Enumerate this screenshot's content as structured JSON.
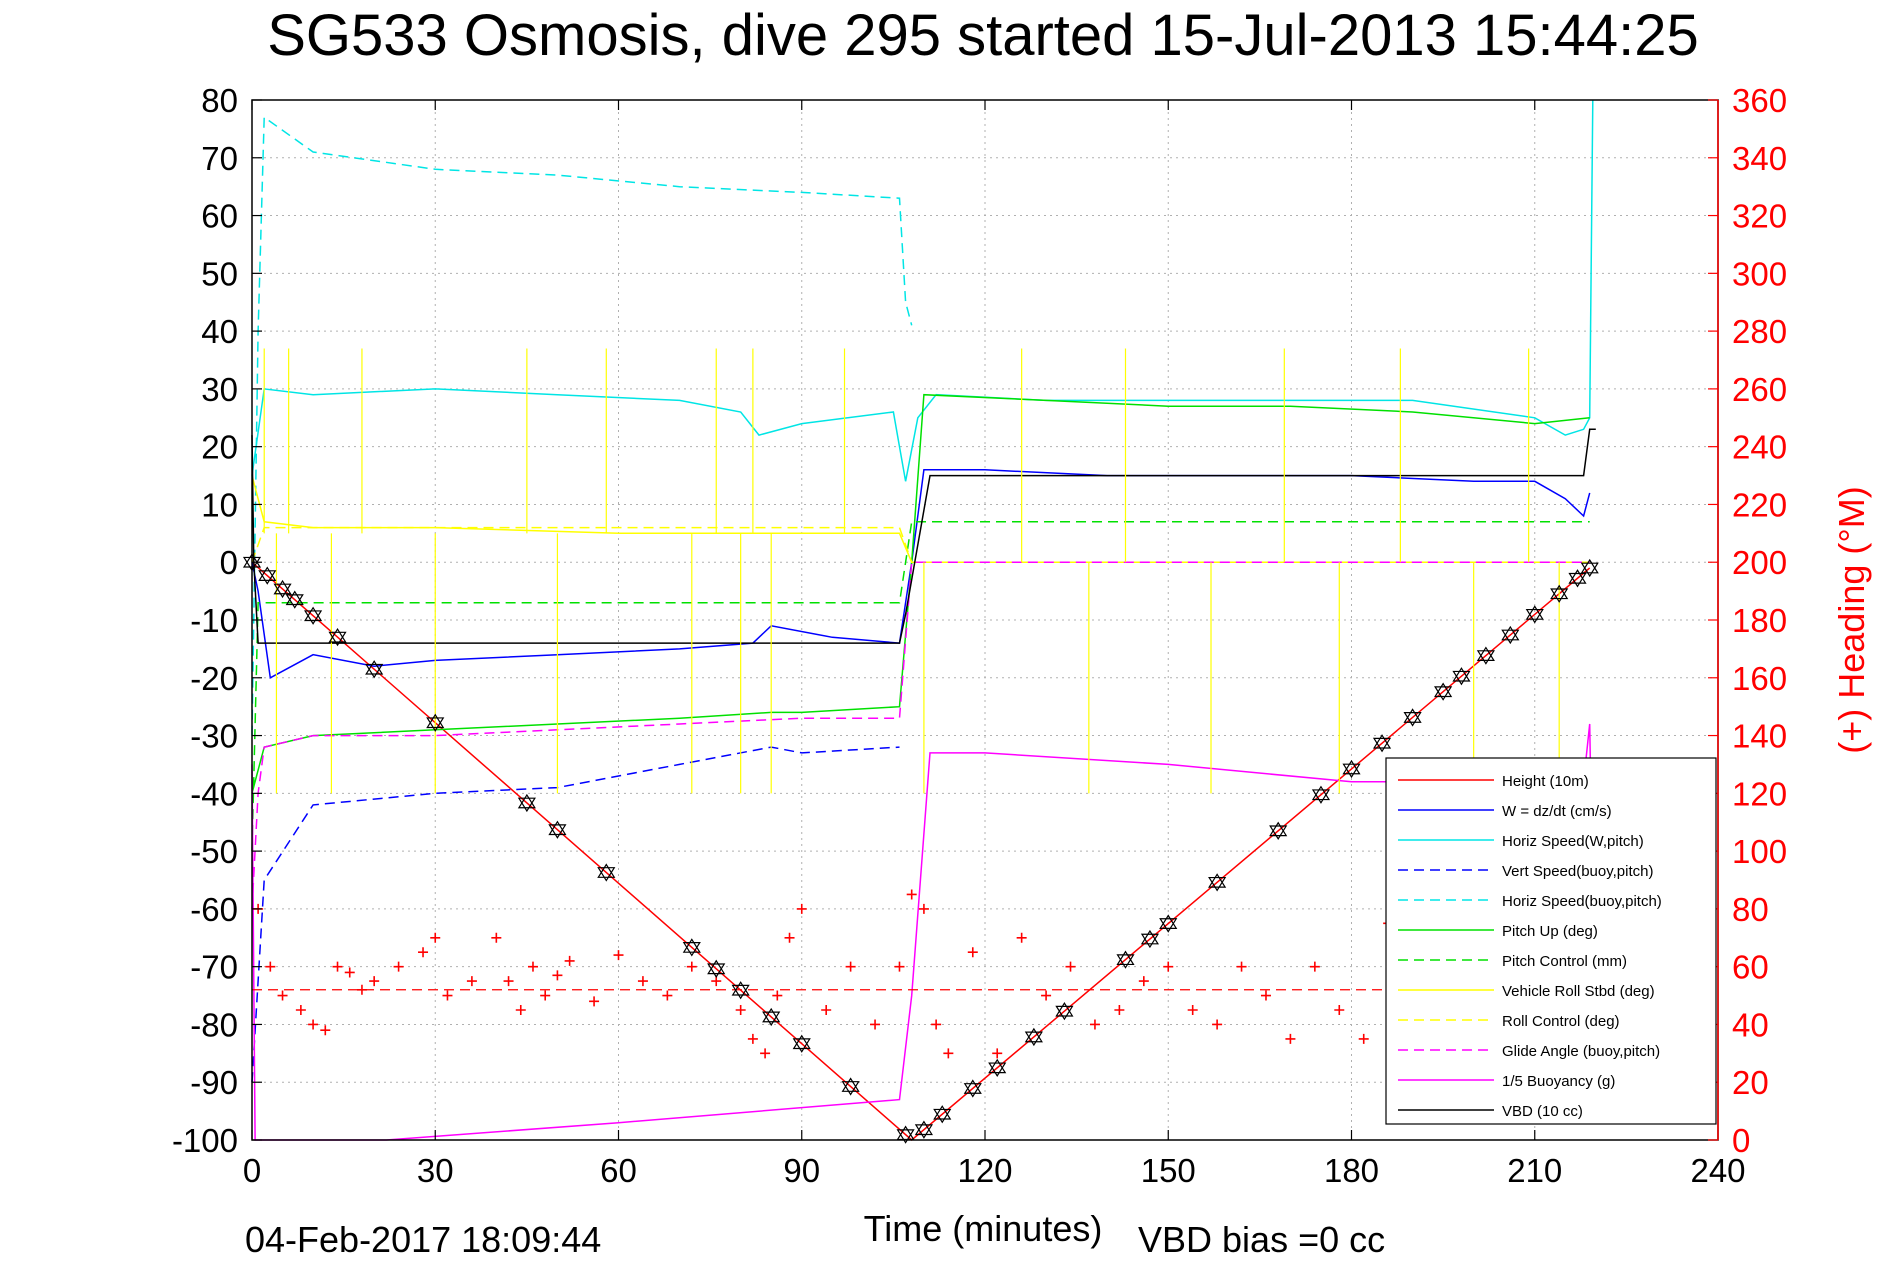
{
  "chart_data": {
    "type": "line",
    "title": "SG533 Osmosis, dive 295 started 15-Jul-2013 15:44:25",
    "xlabel": "Time (minutes)",
    "ylabel": "",
    "y2label": "(+) Heading (°M)",
    "xlim": [
      0,
      240
    ],
    "ylim": [
      -100,
      80
    ],
    "y2lim": [
      0,
      360
    ],
    "x_ticks": [
      0,
      30,
      60,
      90,
      120,
      150,
      180,
      210,
      240
    ],
    "y_ticks": [
      80,
      70,
      60,
      50,
      40,
      30,
      20,
      10,
      0,
      -10,
      -20,
      -30,
      -40,
      -50,
      -60,
      -70,
      -80,
      -90,
      -100
    ],
    "y2_ticks": [
      360,
      340,
      320,
      300,
      280,
      260,
      240,
      220,
      200,
      180,
      160,
      140,
      120,
      100,
      80,
      60,
      40,
      20,
      0
    ],
    "grid": true,
    "legend_position": "bottom-right",
    "footer_date": "04-Feb-2017 18:09:44",
    "footer_note": "VBD bias =0 cc",
    "colors": {
      "height": "#ff0000",
      "w": "#0000ff",
      "horiz_speed_w": "#00e5e5",
      "vert_speed_buoy": "#0000ff",
      "horiz_speed_buoy": "#00e5e5",
      "pitch_up": "#00e000",
      "pitch_control": "#00e000",
      "roll": "#ffff00",
      "roll_control": "#ffff00",
      "glide_angle": "#ff00ff",
      "buoyancy": "#ff00ff",
      "vbd": "#000000",
      "heading": "#ff0000"
    },
    "series": [
      {
        "key": "height",
        "name": "Height (10m)",
        "style": "solid",
        "x": [
          0,
          108,
          219
        ],
        "y": [
          0,
          -100,
          -1
        ]
      },
      {
        "key": "w",
        "name": "W = dz/dt (cm/s)",
        "style": "solid",
        "x": [
          0,
          1,
          3,
          10,
          20,
          30,
          50,
          70,
          82,
          85,
          95,
          106,
          108,
          110,
          120,
          140,
          160,
          180,
          200,
          210,
          215,
          218,
          219
        ],
        "y": [
          0,
          -5,
          -20,
          -16,
          -18,
          -17,
          -16,
          -15,
          -14,
          -11,
          -13,
          -14,
          0,
          16,
          16,
          15,
          15,
          15,
          14,
          14,
          11,
          8,
          12
        ]
      },
      {
        "key": "horiz_speed_w",
        "name": "Horiz Speed(W,pitch)",
        "style": "solid",
        "x": [
          0,
          2,
          10,
          30,
          50,
          70,
          80,
          83,
          90,
          105,
          106,
          107,
          109,
          112,
          130,
          150,
          170,
          190,
          210,
          215,
          218,
          219,
          219.5
        ],
        "y": [
          15,
          30,
          29,
          30,
          29,
          28,
          26,
          22,
          24,
          26,
          20,
          14,
          25,
          29,
          28,
          28,
          28,
          28,
          25,
          22,
          23,
          25,
          80
        ]
      },
      {
        "key": "vert_speed_buoy",
        "name": "Vert Speed(buoy,pitch)",
        "style": "dashed",
        "x": [
          0,
          2,
          10,
          30,
          50,
          70,
          85,
          90,
          106
        ],
        "y": [
          -90,
          -55,
          -42,
          -40,
          -39,
          -35,
          -32,
          -33,
          -32
        ]
      },
      {
        "key": "horiz_speed_buoy",
        "name": "Horiz Speed(buoy,pitch)",
        "style": "dashed",
        "x": [
          0,
          1,
          2,
          10,
          30,
          50,
          70,
          90,
          106,
          107,
          108
        ],
        "y": [
          -30,
          40,
          77,
          71,
          68,
          67,
          65,
          64,
          63,
          45,
          41
        ]
      },
      {
        "key": "pitch_up",
        "name": "Pitch Up (deg)",
        "style": "solid",
        "x": [
          0,
          2,
          10,
          30,
          50,
          70,
          85,
          90,
          106,
          108,
          110,
          130,
          150,
          170,
          190,
          210,
          219
        ],
        "y": [
          -40,
          -32,
          -30,
          -29,
          -28,
          -27,
          -26,
          -26,
          -25,
          0,
          29,
          28,
          27,
          27,
          26,
          24,
          25
        ]
      },
      {
        "key": "pitch_control",
        "name": "Pitch Control (mm)",
        "style": "dashed",
        "x": [
          0,
          1,
          106,
          108,
          219
        ],
        "y": [
          -50,
          -7,
          -7,
          7,
          7
        ]
      },
      {
        "key": "roll",
        "name": "Vehicle Roll Stbd (deg)",
        "style": "solid",
        "x": [
          0,
          2,
          10,
          30,
          60,
          90,
          106,
          108,
          120,
          150,
          180,
          210,
          219
        ],
        "y": [
          15,
          7,
          6,
          6,
          5,
          5,
          5,
          0,
          0,
          0,
          0,
          0,
          0
        ]
      },
      {
        "key": "roll_control",
        "name": "Roll Control (deg)",
        "style": "dashed",
        "x": [
          0,
          2,
          106,
          108,
          219
        ],
        "y": [
          0,
          6,
          6,
          0,
          0
        ]
      },
      {
        "key": "glide_angle",
        "name": "Glide Angle (buoy,pitch)",
        "style": "dashed",
        "x": [
          0,
          1,
          2,
          10,
          30,
          50,
          70,
          90,
          106,
          108,
          219
        ],
        "y": [
          -60,
          -40,
          -32,
          -30,
          -30,
          -29,
          -28,
          -27,
          -27,
          0,
          0
        ]
      },
      {
        "key": "buoyancy",
        "name": "1/5 Buoyancy (g)",
        "style": "solid",
        "x": [
          0,
          0.5,
          22,
          60,
          106,
          108,
          111,
          120,
          150,
          180,
          210,
          218,
          219,
          219.2
        ],
        "y": [
          -35,
          -100,
          -100,
          -97,
          -93,
          -75,
          -33,
          -33,
          -35,
          -38,
          -38,
          -38,
          -28,
          -40
        ]
      },
      {
        "key": "vbd",
        "name": "VBD (10 cc)",
        "style": "solid",
        "x": [
          0,
          0.3,
          1,
          106,
          107,
          111,
          218,
          219,
          220
        ],
        "y": [
          22,
          0,
          -14,
          -14,
          -9,
          15,
          15,
          23,
          23
        ]
      },
      {
        "key": "heading",
        "name": "Heading",
        "style": "markers",
        "x": [
          1,
          3,
          5,
          8,
          10,
          12,
          14,
          16,
          18,
          20,
          24,
          28,
          30,
          32,
          36,
          40,
          42,
          44,
          46,
          48,
          50,
          52,
          56,
          60,
          64,
          68,
          72,
          76,
          80,
          82,
          84,
          86,
          88,
          90,
          94,
          98,
          102,
          106,
          108,
          110,
          112,
          114,
          118,
          122,
          126,
          130,
          134,
          138,
          142,
          146,
          150,
          154,
          158,
          162,
          166,
          170,
          174,
          178,
          182,
          186,
          190,
          194,
          198,
          202,
          206,
          210,
          214
        ],
        "y": [
          80,
          60,
          50,
          45,
          40,
          38,
          60,
          58,
          52,
          55,
          60,
          65,
          70,
          50,
          55,
          70,
          55,
          45,
          60,
          50,
          57,
          62,
          48,
          64,
          55,
          50,
          60,
          55,
          45,
          35,
          30,
          50,
          70,
          80,
          45,
          60,
          40,
          60,
          85,
          80,
          40,
          30,
          65,
          30,
          70,
          50,
          60,
          40,
          45,
          55,
          60,
          45,
          40,
          60,
          50,
          35,
          60,
          45,
          35,
          75,
          80,
          50,
          45,
          55,
          40,
          50,
          45
        ]
      }
    ],
    "markers": {
      "triangles_x": [
        0,
        2.5,
        5,
        7,
        10,
        14,
        20,
        30,
        45,
        50,
        58,
        72,
        76,
        80,
        85,
        90,
        98,
        107,
        110,
        113,
        118,
        122,
        128,
        133,
        143,
        147,
        150,
        158,
        168,
        175,
        180,
        185,
        190,
        195,
        198,
        202,
        206,
        210,
        214,
        217,
        219
      ]
    }
  },
  "legend": {
    "items": [
      {
        "label": "Height (10m)",
        "color": "#ff0000",
        "style": "solid"
      },
      {
        "label": "W = dz/dt (cm/s)",
        "color": "#0000ff",
        "style": "solid"
      },
      {
        "label": "Horiz Speed(W,pitch)",
        "color": "#00e5e5",
        "style": "solid"
      },
      {
        "label": "Vert Speed(buoy,pitch)",
        "color": "#0000ff",
        "style": "dashed"
      },
      {
        "label": "Horiz Speed(buoy,pitch)",
        "color": "#00e5e5",
        "style": "dashed"
      },
      {
        "label": "Pitch Up (deg)",
        "color": "#00e000",
        "style": "solid"
      },
      {
        "label": "Pitch Control (mm)",
        "color": "#00e000",
        "style": "dashed"
      },
      {
        "label": "Vehicle Roll Stbd (deg)",
        "color": "#ffff00",
        "style": "solid"
      },
      {
        "label": "Roll Control (deg)",
        "color": "#ffff00",
        "style": "dashed"
      },
      {
        "label": "Glide Angle (buoy,pitch)",
        "color": "#ff00ff",
        "style": "dashed"
      },
      {
        "label": "1/5 Buoyancy (g)",
        "color": "#ff00ff",
        "style": "solid"
      },
      {
        "label": "VBD (10 cc)",
        "color": "#000000",
        "style": "solid"
      }
    ]
  }
}
